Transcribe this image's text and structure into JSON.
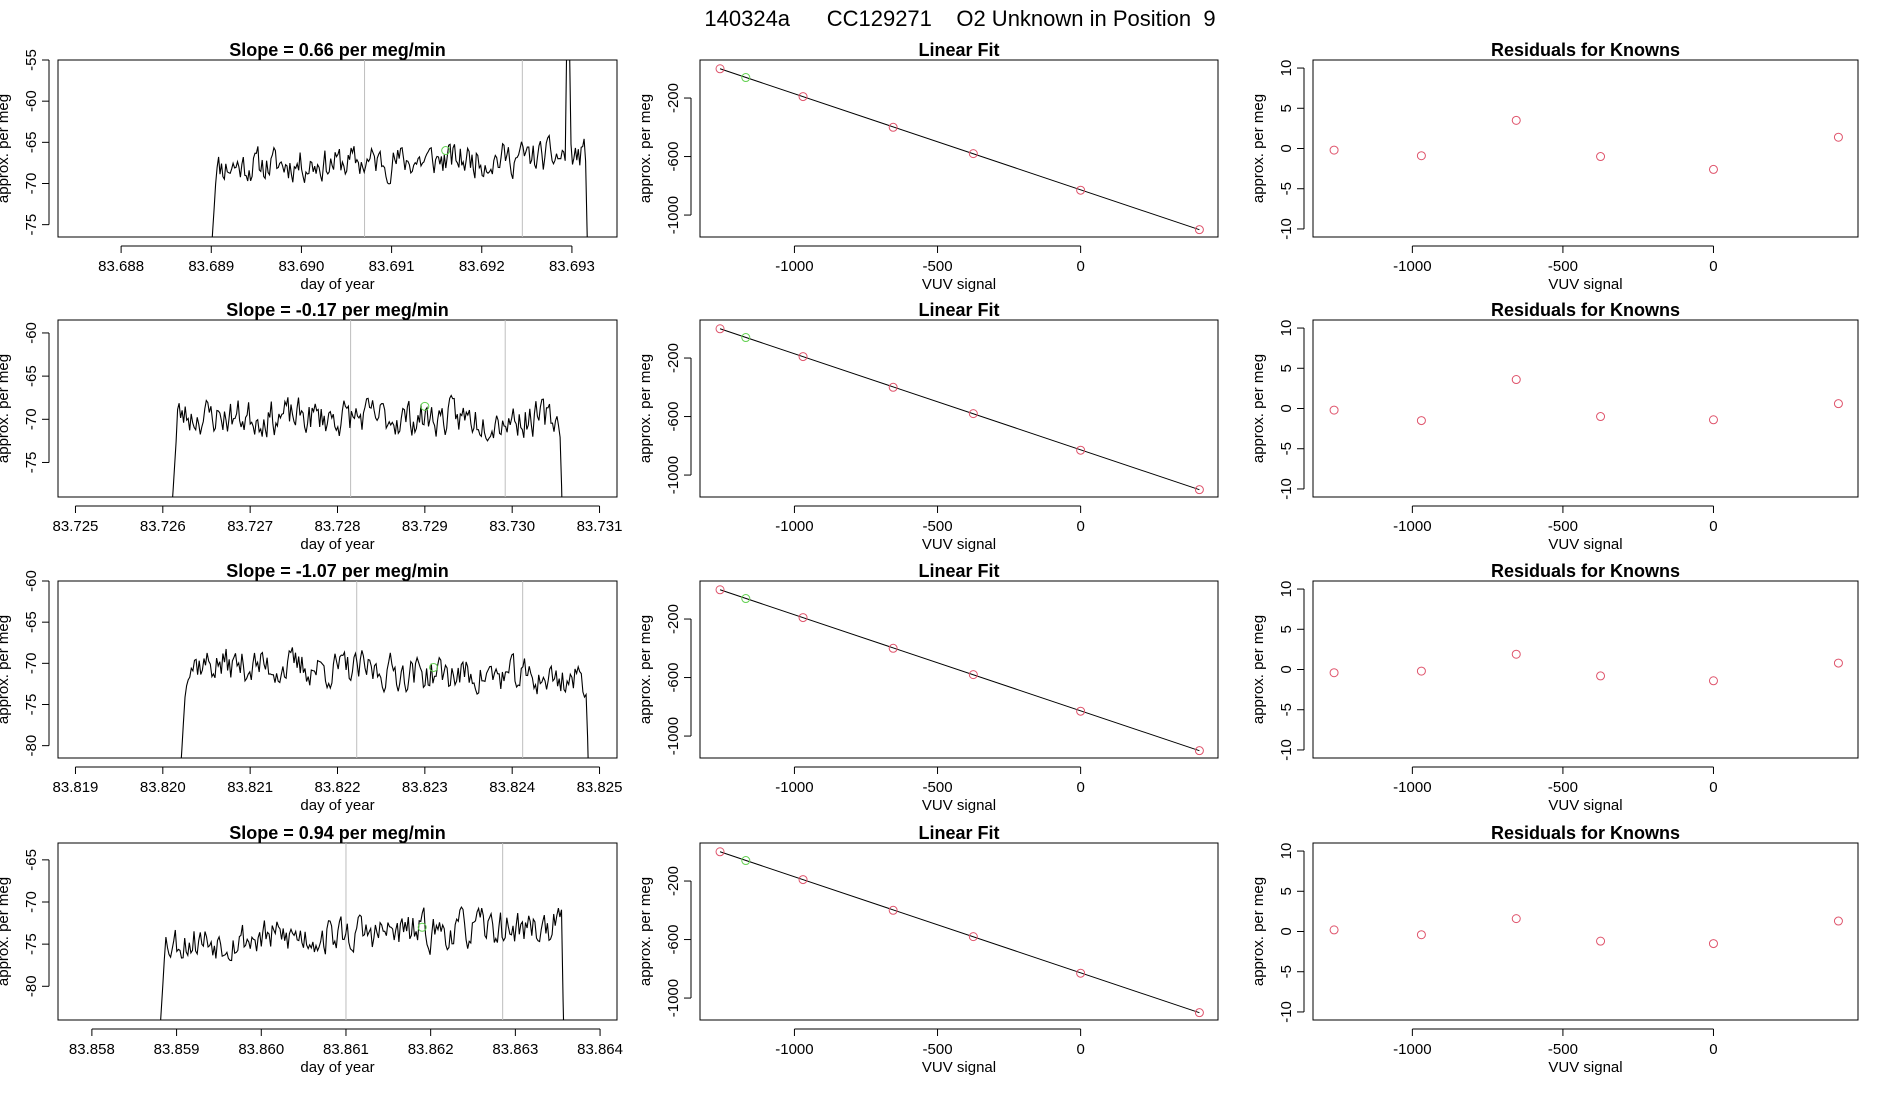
{
  "page_title": "140324a      CC129271    O2 Unknown in Position  9",
  "colors": {
    "axis": "#000000",
    "trace": "#000000",
    "vline": "#bebebe",
    "point_red": "#df536b",
    "point_green": "#61d04f"
  },
  "chart_data": [
    {
      "row": 1,
      "panels": [
        {
          "type": "line",
          "title": "Slope =  0.66  per meg/min",
          "xlabel": "day of year",
          "ylabel": "approx. per meg",
          "xlim": [
            83.6873,
            83.6935
          ],
          "ylim": [
            -76.5,
            -55
          ],
          "xticks": [
            83.688,
            83.689,
            83.69,
            83.691,
            83.692,
            83.693
          ],
          "xtick_labels": [
            "83.688",
            "83.689",
            "83.690",
            "83.691",
            "83.692",
            "83.693"
          ],
          "yticks": [
            -75,
            -70,
            -65,
            -60,
            -55
          ],
          "ytick_labels": [
            "-75",
            "-70",
            "-65",
            "-60",
            "-55"
          ],
          "vlines": [
            83.6907,
            83.69245
          ],
          "highlight_point": [
            83.6916,
            -66
          ],
          "trace_start": 83.689,
          "trace_end": 83.6932,
          "trace_mean": -67.3,
          "trace_amplitude": 3.2,
          "trace_trend": 0.66,
          "spike_at": 83.69295,
          "spike_value": -54,
          "seed": 11
        },
        {
          "type": "scatter",
          "title": "Linear Fit",
          "xlabel": "VUV signal",
          "ylabel": "approx. per meg",
          "xlim": [
            -1330,
            480
          ],
          "ylim": [
            -1150,
            60
          ],
          "xticks": [
            -1000,
            -500,
            0
          ],
          "xtick_labels": [
            "-1000",
            "-500",
            "0"
          ],
          "yticks": [
            -1000,
            -600,
            -200
          ],
          "ytick_labels": [
            "-1000",
            "-600",
            "-200"
          ],
          "knowns": [
            [
              -1260,
              0
            ],
            [
              -970,
              -190
            ],
            [
              -655,
              -400
            ],
            [
              -375,
              -580
            ],
            [
              0,
              -830
            ],
            [
              415,
              -1100
            ]
          ],
          "unknown": [
            -1170,
            -60
          ],
          "fit_line": [
            [
              -1260,
              0
            ],
            [
              415,
              -1100
            ]
          ]
        },
        {
          "type": "scatter",
          "title": "Residuals for Knowns",
          "xlabel": "VUV signal",
          "ylabel": "approx. per meg",
          "xlim": [
            -1330,
            480
          ],
          "ylim": [
            -11,
            11
          ],
          "xticks": [
            -1000,
            -500,
            0
          ],
          "xtick_labels": [
            "-1000",
            "-500",
            "0"
          ],
          "yticks": [
            -10,
            -5,
            0,
            5,
            10
          ],
          "ytick_labels": [
            "-10",
            "-5",
            "0",
            "5",
            "10"
          ],
          "residuals": [
            [
              -1260,
              -0.2
            ],
            [
              -970,
              -0.9
            ],
            [
              -655,
              3.5
            ],
            [
              -375,
              -1.0
            ],
            [
              0,
              -2.6
            ],
            [
              415,
              1.4
            ]
          ]
        }
      ]
    },
    {
      "row": 2,
      "panels": [
        {
          "type": "line",
          "title": "Slope =  -0.17  per meg/min",
          "xlabel": "day of year",
          "ylabel": "approx. per meg",
          "xlim": [
            83.7248,
            83.7312
          ],
          "ylim": [
            -79,
            -58.5
          ],
          "xticks": [
            83.725,
            83.726,
            83.727,
            83.728,
            83.729,
            83.73,
            83.731
          ],
          "xtick_labels": [
            "83.725",
            "83.726",
            "83.727",
            "83.728",
            "83.729",
            "83.730",
            "83.731"
          ],
          "yticks": [
            -75,
            -70,
            -65,
            -60
          ],
          "ytick_labels": [
            "-75",
            "-70",
            "-65",
            "-60"
          ],
          "vlines": [
            83.72815,
            83.72992
          ],
          "highlight_point": [
            83.729,
            -68.5
          ],
          "trace_start": 83.7261,
          "trace_end": 83.7306,
          "trace_mean": -69.8,
          "trace_amplitude": 3.3,
          "trace_trend": -0.17,
          "spike_at": null,
          "spike_value": null,
          "seed": 23
        },
        {
          "type": "scatter",
          "title": "Linear Fit",
          "xlabel": "VUV signal",
          "ylabel": "approx. per meg",
          "xlim": [
            -1330,
            480
          ],
          "ylim": [
            -1150,
            60
          ],
          "xticks": [
            -1000,
            -500,
            0
          ],
          "xtick_labels": [
            "-1000",
            "-500",
            "0"
          ],
          "yticks": [
            -1000,
            -600,
            -200
          ],
          "ytick_labels": [
            "-1000",
            "-600",
            "-200"
          ],
          "knowns": [
            [
              -1260,
              0
            ],
            [
              -970,
              -190
            ],
            [
              -655,
              -400
            ],
            [
              -375,
              -580
            ],
            [
              0,
              -830
            ],
            [
              415,
              -1100
            ]
          ],
          "unknown": [
            -1170,
            -60
          ],
          "fit_line": [
            [
              -1260,
              0
            ],
            [
              415,
              -1100
            ]
          ]
        },
        {
          "type": "scatter",
          "title": "Residuals for Knowns",
          "xlabel": "VUV signal",
          "ylabel": "approx. per meg",
          "xlim": [
            -1330,
            480
          ],
          "ylim": [
            -11,
            11
          ],
          "xticks": [
            -1000,
            -500,
            0
          ],
          "xtick_labels": [
            "-1000",
            "-500",
            "0"
          ],
          "yticks": [
            -10,
            -5,
            0,
            5,
            10
          ],
          "ytick_labels": [
            "-10",
            "-5",
            "0",
            "5",
            "10"
          ],
          "residuals": [
            [
              -1260,
              -0.2
            ],
            [
              -970,
              -1.5
            ],
            [
              -655,
              3.6
            ],
            [
              -375,
              -1.0
            ],
            [
              0,
              -1.4
            ],
            [
              415,
              0.6
            ]
          ]
        }
      ]
    },
    {
      "row": 3,
      "panels": [
        {
          "type": "line",
          "title": "Slope =  -1.07  per meg/min",
          "xlabel": "day of year",
          "ylabel": "approx. per meg",
          "xlim": [
            83.8188,
            83.8252
          ],
          "ylim": [
            -81.5,
            -60
          ],
          "xticks": [
            83.819,
            83.82,
            83.821,
            83.822,
            83.823,
            83.824,
            83.825
          ],
          "xtick_labels": [
            "83.819",
            "83.820",
            "83.821",
            "83.822",
            "83.823",
            "83.824",
            "83.825"
          ],
          "yticks": [
            -80,
            -75,
            -70,
            -65,
            -60
          ],
          "ytick_labels": [
            "-80",
            "-75",
            "-70",
            "-65",
            "-60"
          ],
          "vlines": [
            83.82222,
            83.82412
          ],
          "highlight_point": [
            83.8231,
            -70.5
          ],
          "trace_start": 83.8202,
          "trace_end": 83.8249,
          "trace_mean": -71.0,
          "trace_amplitude": 3.4,
          "trace_trend": -1.07,
          "spike_at": null,
          "spike_value": null,
          "seed": 37
        },
        {
          "type": "scatter",
          "title": "Linear Fit",
          "xlabel": "VUV signal",
          "ylabel": "approx. per meg",
          "xlim": [
            -1330,
            480
          ],
          "ylim": [
            -1150,
            60
          ],
          "xticks": [
            -1000,
            -500,
            0
          ],
          "xtick_labels": [
            "-1000",
            "-500",
            "0"
          ],
          "yticks": [
            -1000,
            -600,
            -200
          ],
          "ytick_labels": [
            "-1000",
            "-600",
            "-200"
          ],
          "knowns": [
            [
              -1260,
              0
            ],
            [
              -970,
              -190
            ],
            [
              -655,
              -400
            ],
            [
              -375,
              -580
            ],
            [
              0,
              -830
            ],
            [
              415,
              -1100
            ]
          ],
          "unknown": [
            -1170,
            -60
          ],
          "fit_line": [
            [
              -1260,
              0
            ],
            [
              415,
              -1100
            ]
          ]
        },
        {
          "type": "scatter",
          "title": "Residuals for Knowns",
          "xlabel": "VUV signal",
          "ylabel": "approx. per meg",
          "xlim": [
            -1330,
            480
          ],
          "ylim": [
            -11,
            11
          ],
          "xticks": [
            -1000,
            -500,
            0
          ],
          "xtick_labels": [
            "-1000",
            "-500",
            "0"
          ],
          "yticks": [
            -10,
            -5,
            0,
            5,
            10
          ],
          "ytick_labels": [
            "-10",
            "-5",
            "0",
            "5",
            "10"
          ],
          "residuals": [
            [
              -1260,
              -0.4
            ],
            [
              -970,
              -0.2
            ],
            [
              -655,
              1.9
            ],
            [
              -375,
              -0.8
            ],
            [
              0,
              -1.4
            ],
            [
              415,
              0.8
            ]
          ]
        }
      ]
    },
    {
      "row": 4,
      "panels": [
        {
          "type": "line",
          "title": "Slope =  0.94  per meg/min",
          "xlabel": "day of year",
          "ylabel": "approx. per meg",
          "xlim": [
            83.8576,
            83.8642
          ],
          "ylim": [
            -84,
            -63
          ],
          "xticks": [
            83.858,
            83.859,
            83.86,
            83.861,
            83.862,
            83.863,
            83.864
          ],
          "xtick_labels": [
            "83.858",
            "83.859",
            "83.860",
            "83.861",
            "83.862",
            "83.863",
            "83.864"
          ],
          "yticks": [
            -80,
            -75,
            -70,
            -65
          ],
          "ytick_labels": [
            "-80",
            "-75",
            "-70",
            "-65"
          ],
          "vlines": [
            83.861,
            83.86285
          ],
          "highlight_point": [
            83.8619,
            -73
          ],
          "trace_start": 83.8588,
          "trace_end": 83.8636,
          "trace_mean": -73.8,
          "trace_amplitude": 3.5,
          "trace_trend": 0.94,
          "spike_at": null,
          "spike_value": null,
          "seed": 53
        },
        {
          "type": "scatter",
          "title": "Linear Fit",
          "xlabel": "VUV signal",
          "ylabel": "approx. per meg",
          "xlim": [
            -1330,
            480
          ],
          "ylim": [
            -1150,
            60
          ],
          "xticks": [
            -1000,
            -500,
            0
          ],
          "xtick_labels": [
            "-1000",
            "-500",
            "0"
          ],
          "yticks": [
            -1000,
            -600,
            -200
          ],
          "ytick_labels": [
            "-1000",
            "-600",
            "-200"
          ],
          "knowns": [
            [
              -1260,
              0
            ],
            [
              -970,
              -190
            ],
            [
              -655,
              -400
            ],
            [
              -375,
              -580
            ],
            [
              0,
              -830
            ],
            [
              415,
              -1100
            ]
          ],
          "unknown": [
            -1170,
            -60
          ],
          "fit_line": [
            [
              -1260,
              0
            ],
            [
              415,
              -1100
            ]
          ]
        },
        {
          "type": "scatter",
          "title": "Residuals for Knowns",
          "xlabel": "VUV signal",
          "ylabel": "approx. per meg",
          "xlim": [
            -1330,
            480
          ],
          "ylim": [
            -11,
            11
          ],
          "xticks": [
            -1000,
            -500,
            0
          ],
          "xtick_labels": [
            "-1000",
            "-500",
            "0"
          ],
          "yticks": [
            -10,
            -5,
            0,
            5,
            10
          ],
          "ytick_labels": [
            "-10",
            "-5",
            "0",
            "5",
            "10"
          ],
          "residuals": [
            [
              -1260,
              0.2
            ],
            [
              -970,
              -0.4
            ],
            [
              -655,
              1.6
            ],
            [
              -375,
              -1.2
            ],
            [
              0,
              -1.5
            ],
            [
              415,
              1.3
            ]
          ]
        }
      ]
    }
  ]
}
